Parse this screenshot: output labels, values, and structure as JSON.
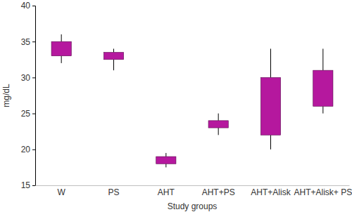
{
  "chart_data": {
    "type": "box",
    "x_label": "Study groups",
    "y_label": "mg/dL",
    "categories": [
      "W",
      "PS",
      "AHT",
      "AHT+PS",
      "AHT+Alisk",
      "AHT+Alisk+ PS"
    ],
    "min": [
      32,
      31,
      17.5,
      22,
      20,
      25
    ],
    "q1": [
      33,
      32.5,
      18,
      23,
      22,
      26
    ],
    "q3": [
      35,
      33.5,
      19,
      24,
      30,
      31
    ],
    "max": [
      36,
      34,
      19.5,
      25,
      34,
      34
    ],
    "color": "#b5189e",
    "ylim": [
      15,
      40
    ],
    "yticks": [
      15,
      20,
      25,
      30,
      35,
      40
    ],
    "grid": false
  }
}
